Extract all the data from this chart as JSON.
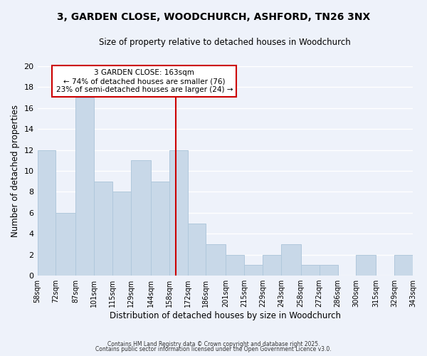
{
  "title1": "3, GARDEN CLOSE, WOODCHURCH, ASHFORD, TN26 3NX",
  "title2": "Size of property relative to detached houses in Woodchurch",
  "xlabel": "Distribution of detached houses by size in Woodchurch",
  "ylabel": "Number of detached properties",
  "bar_color": "#c8d8e8",
  "bar_edge_color": "#b0c8dc",
  "background_color": "#eef2fa",
  "grid_color": "#ffffff",
  "vline_x": 163,
  "vline_color": "#cc0000",
  "bins": [
    58,
    72,
    87,
    101,
    115,
    129,
    144,
    158,
    172,
    186,
    201,
    215,
    229,
    243,
    258,
    272,
    286,
    300,
    315,
    329,
    343
  ],
  "counts": [
    12,
    6,
    17,
    9,
    8,
    11,
    9,
    12,
    5,
    3,
    2,
    1,
    2,
    3,
    1,
    1,
    0,
    2,
    0,
    2
  ],
  "tick_labels": [
    "58sqm",
    "72sqm",
    "87sqm",
    "101sqm",
    "115sqm",
    "129sqm",
    "144sqm",
    "158sqm",
    "172sqm",
    "186sqm",
    "201sqm",
    "215sqm",
    "229sqm",
    "243sqm",
    "258sqm",
    "272sqm",
    "286sqm",
    "300sqm",
    "315sqm",
    "329sqm",
    "343sqm"
  ],
  "annotation_title": "3 GARDEN CLOSE: 163sqm",
  "annotation_line1": "← 74% of detached houses are smaller (76)",
  "annotation_line2": "23% of semi-detached houses are larger (24) →",
  "annotation_box_color": "#ffffff",
  "annotation_box_edge": "#cc0000",
  "ylim": [
    0,
    20
  ],
  "yticks": [
    0,
    2,
    4,
    6,
    8,
    10,
    12,
    14,
    16,
    18,
    20
  ],
  "footer1": "Contains HM Land Registry data © Crown copyright and database right 2025.",
  "footer2": "Contains public sector information licensed under the Open Government Licence v3.0."
}
